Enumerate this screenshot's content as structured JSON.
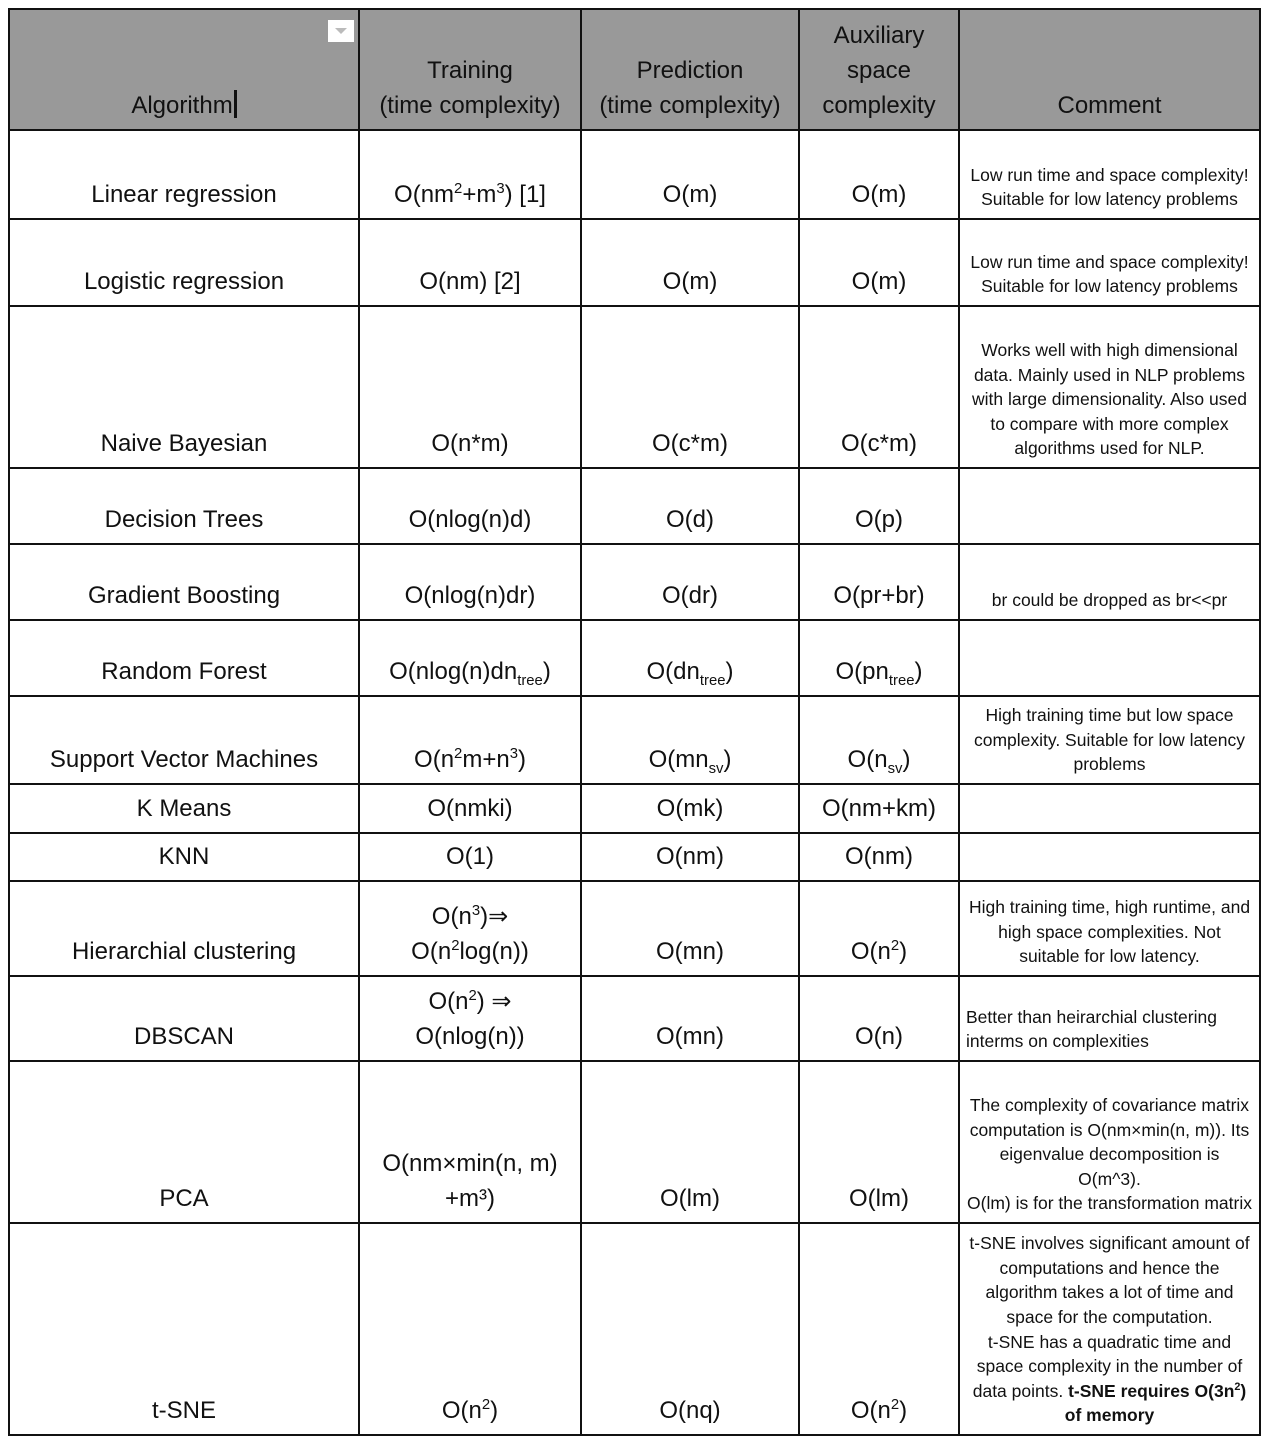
{
  "header": [
    "Algorithm",
    "Training\n(time complexity)",
    "Prediction\n(time complexity)",
    "Auxiliary\nspace\ncomplexity",
    "Comment"
  ],
  "filter_icon": "dropdown-arrow-icon",
  "rows": [
    {
      "algo": "Linear regression",
      "train": [
        [
          "O(nm"
        ],
        [
          "2",
          "sup"
        ],
        [
          "+m"
        ],
        [
          "3",
          "sup"
        ],
        [
          ") [1]"
        ]
      ],
      "pred": [
        [
          "O(m)"
        ]
      ],
      "space": [
        [
          "O(m)"
        ]
      ],
      "comment": [
        [
          "Low run time and space complexity!\nSuitable for low latency problems"
        ]
      ]
    },
    {
      "algo": "Logistic regression",
      "train": [
        [
          "O(nm) [2]"
        ]
      ],
      "pred": [
        [
          "O(m)"
        ]
      ],
      "space": [
        [
          "O(m)"
        ]
      ],
      "comment": [
        [
          "Low run time and space complexity!\nSuitable for low latency problems"
        ]
      ]
    },
    {
      "algo": "Naive Bayesian",
      "train": [
        [
          "O(n*m)"
        ]
      ],
      "pred": [
        [
          "O(c*m)"
        ]
      ],
      "space": [
        [
          "O(c*m)"
        ]
      ],
      "comment": [
        [
          "Works well with high dimensional data. Mainly used in NLP problems with large dimensionality. Also used to compare with more complex algorithms used for NLP."
        ]
      ]
    },
    {
      "algo": "Decision Trees",
      "train": [
        [
          "O(nlog(n)d)"
        ]
      ],
      "pred": [
        [
          "O(d)"
        ]
      ],
      "space": [
        [
          "O(p)"
        ]
      ],
      "comment": []
    },
    {
      "algo": "Gradient Boosting",
      "train": [
        [
          "O(nlog(n)dr)"
        ]
      ],
      "pred": [
        [
          "O(dr)"
        ]
      ],
      "space": [
        [
          "O(pr+br)"
        ]
      ],
      "comment": [
        [
          "br could be dropped as br<<pr"
        ]
      ]
    },
    {
      "algo": "Random Forest",
      "train": [
        [
          "O(nlog(n)dn"
        ],
        [
          "tree",
          "sub"
        ],
        [
          ")"
        ]
      ],
      "pred": [
        [
          "O(dn"
        ],
        [
          "tree",
          "sub"
        ],
        [
          ")"
        ]
      ],
      "space": [
        [
          "O(pn"
        ],
        [
          "tree",
          "sub"
        ],
        [
          ")"
        ]
      ],
      "comment": []
    },
    {
      "algo": "Support Vector Machines",
      "train": [
        [
          "O(n"
        ],
        [
          "2",
          "sup"
        ],
        [
          "m+n"
        ],
        [
          "3",
          "sup"
        ],
        [
          ")"
        ]
      ],
      "pred": [
        [
          "O(mn"
        ],
        [
          "sv",
          "sub"
        ],
        [
          ")"
        ]
      ],
      "space": [
        [
          "O(n"
        ],
        [
          "sv",
          "sub"
        ],
        [
          ")"
        ]
      ],
      "comment": [
        [
          "High training time but low space complexity. Suitable for low latency problems"
        ]
      ]
    },
    {
      "algo": "K Means",
      "train": [
        [
          "O(nmki)"
        ]
      ],
      "pred": [
        [
          "O(mk)"
        ]
      ],
      "space": [
        [
          "O(nm+km)"
        ]
      ],
      "comment": []
    },
    {
      "algo": "KNN",
      "train": [
        [
          "O(1)"
        ]
      ],
      "pred": [
        [
          "O(nm)"
        ]
      ],
      "space": [
        [
          "O(nm)"
        ]
      ],
      "comment": []
    },
    {
      "algo": "Hierarchial clustering",
      "train": [
        [
          "O(n"
        ],
        [
          "3",
          "sup"
        ],
        [
          ")⇒\nO(n"
        ],
        [
          "2",
          "sup"
        ],
        [
          "log(n))"
        ]
      ],
      "pred": [
        [
          "O(mn)"
        ]
      ],
      "space": [
        [
          "O(n"
        ],
        [
          "2",
          "sup"
        ],
        [
          ")"
        ]
      ],
      "comment": [
        [
          "High training time, high runtime, and high space complexities. Not suitable for low latency."
        ]
      ]
    },
    {
      "algo": "DBSCAN",
      "train": [
        [
          "O(n"
        ],
        [
          "2",
          "sup"
        ],
        [
          ") ⇒\nO(nlog(n))"
        ]
      ],
      "pred": [
        [
          "O(mn)"
        ]
      ],
      "space": [
        [
          "O(n)"
        ]
      ],
      "comment": [
        [
          "Better than heirarchial clustering interms on complexities"
        ]
      ],
      "comment_left": true
    },
    {
      "algo": "PCA",
      "train": [
        [
          "O(nm×min(n, m)\n+m³)"
        ]
      ],
      "pred": [
        [
          "O(lm)"
        ]
      ],
      "space": [
        [
          "O(lm)"
        ]
      ],
      "comment": [
        [
          "The complexity of covariance matrix computation is O(nm×min(n, m)). Its eigenvalue decomposition is O(m^3).\nO(lm) is for the transformation matrix"
        ]
      ]
    },
    {
      "algo": "t-SNE",
      "train": [
        [
          "O(n"
        ],
        [
          "2",
          "sup"
        ],
        [
          ")"
        ]
      ],
      "pred": [
        [
          "O(nq)"
        ]
      ],
      "space": [
        [
          "O(n"
        ],
        [
          "2",
          "sup"
        ],
        [
          ")"
        ]
      ],
      "comment": [
        [
          "t-SNE involves significant amount of computations and hence the algorithm takes a lot of time and space for the computation.\nt-SNE has a quadratic time and space complexity in the number of data points. "
        ],
        [
          "t-SNE requires O(3n",
          "b"
        ],
        [
          "2",
          "bsup"
        ],
        [
          ") of memory",
          "b"
        ]
      ]
    }
  ]
}
